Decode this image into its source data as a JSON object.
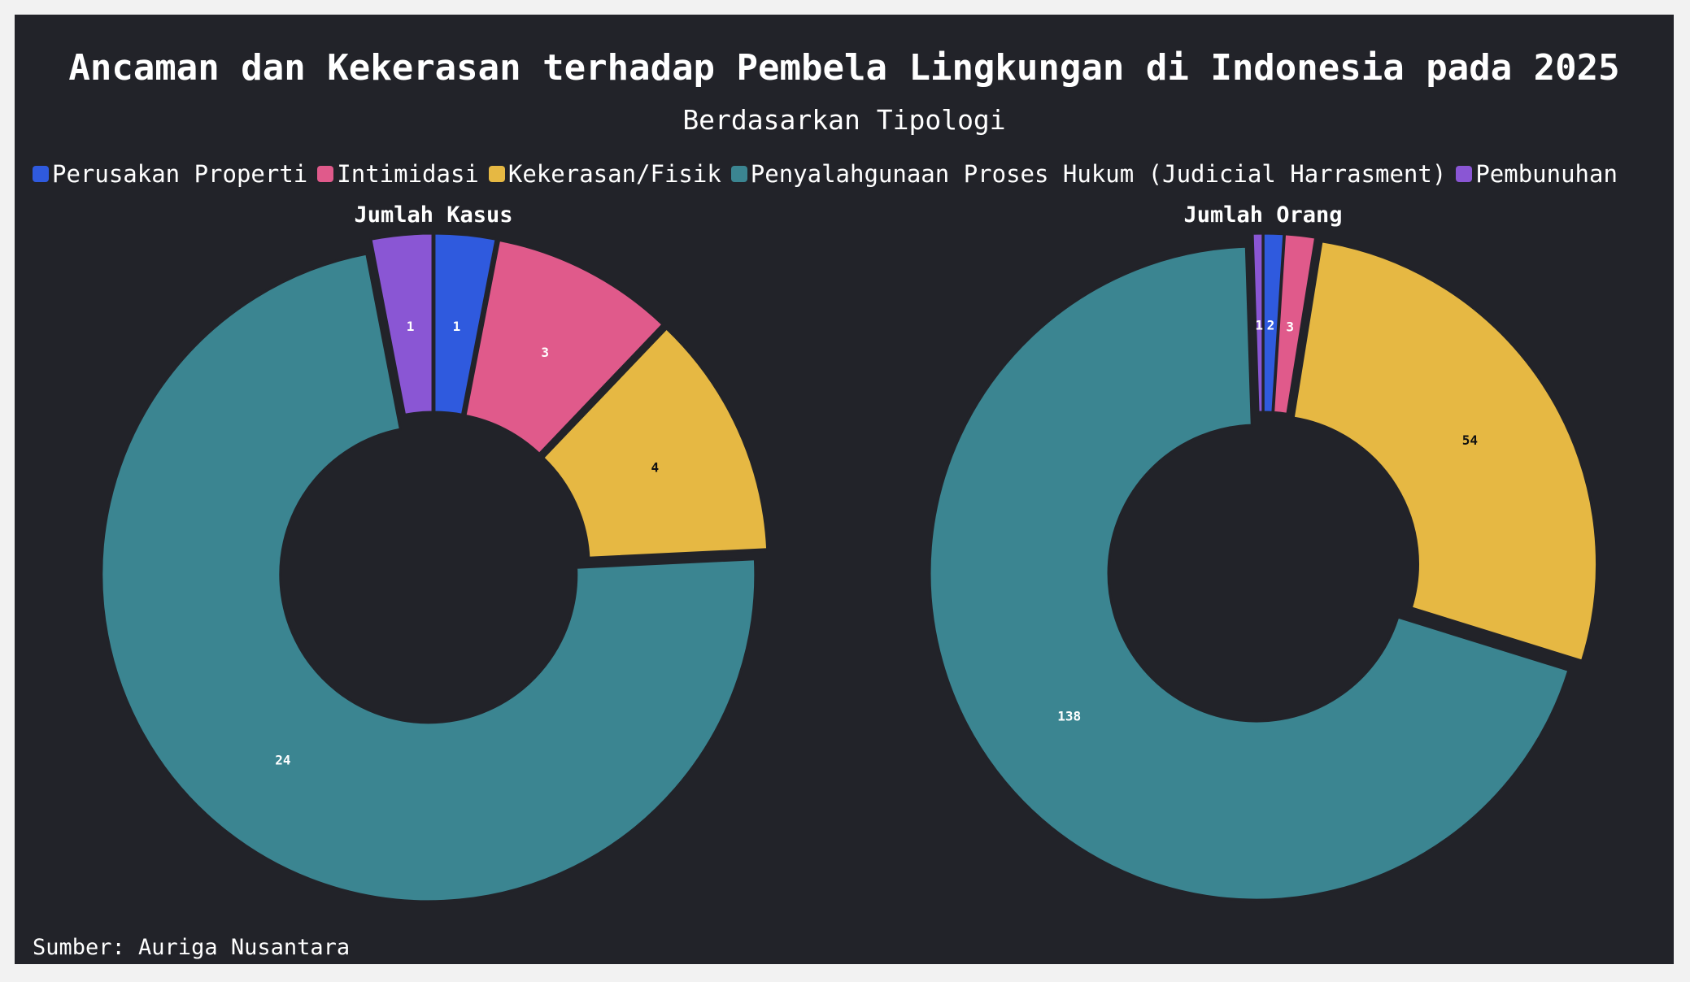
{
  "title": "Ancaman dan Kekerasan terhadap Pembela Lingkungan di Indonesia pada 2025",
  "subtitle": "Berdasarkan Tipologi",
  "source": "Sumber: Auriga Nusantara",
  "colors": {
    "background": "#222329",
    "Perusakan Properti": "#2f5ade",
    "Intimidasi": "#e05a8b",
    "Kekerasan/Fisik": "#e6b843",
    "Penyalahgunaan Proses Hukum (Judicial Harrasment)": "#3b8591",
    "Pembunuhan": "#8a56d4"
  },
  "legend": [
    {
      "label": "Perusakan Properti",
      "color": "#2f5ade"
    },
    {
      "label": "Intimidasi",
      "color": "#e05a8b"
    },
    {
      "label": "Kekerasan/Fisik",
      "color": "#e6b843"
    },
    {
      "label": "Penyalahgunaan Proses Hukum (Judicial Harrasment)",
      "color": "#3b8591"
    },
    {
      "label": "Pembunuhan",
      "color": "#8a56d4"
    }
  ],
  "chart_data": [
    {
      "type": "pie",
      "title": "Jumlah Kasus",
      "donut": true,
      "categories": [
        "Perusakan Properti",
        "Intimidasi",
        "Kekerasan/Fisik",
        "Penyalahgunaan Proses Hukum (Judicial Harrasment)",
        "Pembunuhan"
      ],
      "values": [
        1,
        3,
        4,
        24,
        1
      ]
    },
    {
      "type": "pie",
      "title": "Jumlah Orang",
      "donut": true,
      "categories": [
        "Perusakan Properti",
        "Intimidasi",
        "Kekerasan/Fisik",
        "Penyalahgunaan Proses Hukum (Judicial Harrasment)",
        "Pembunuhan"
      ],
      "values": [
        2,
        3,
        54,
        138,
        1
      ]
    }
  ]
}
